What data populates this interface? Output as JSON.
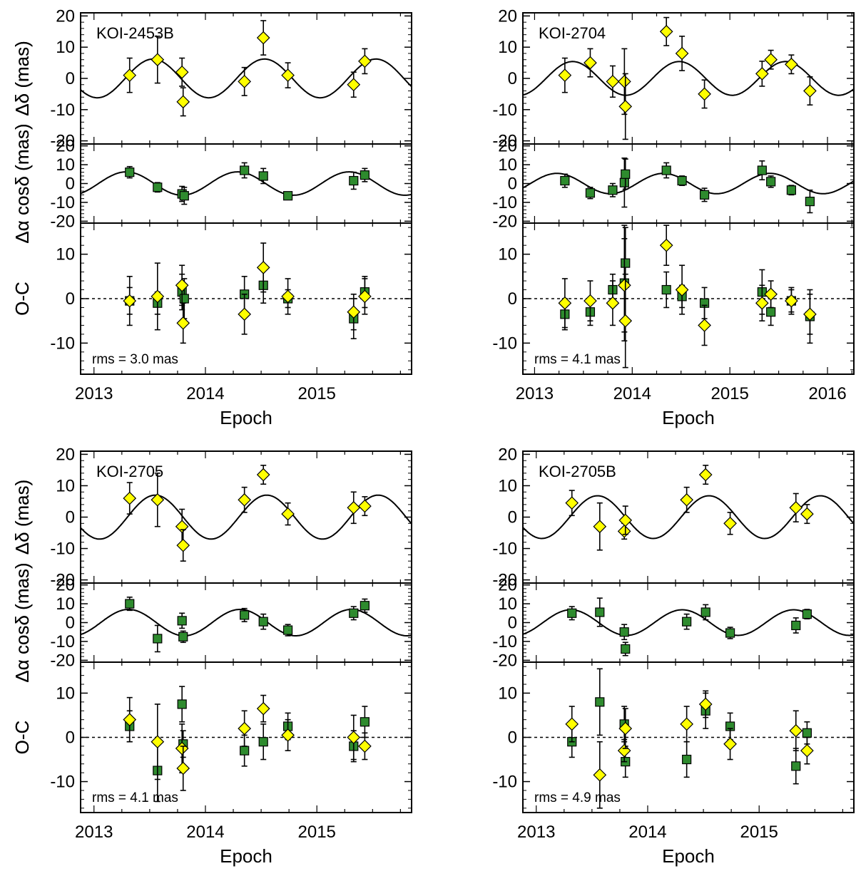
{
  "figure": {
    "xlabel": "Epoch",
    "x_ticks": [
      2013,
      2014,
      2015,
      2016
    ],
    "row_labels": {
      "ddec": "Δδ (mas)",
      "dra": "Δα cosδ (mas)",
      "oc": "O-C"
    },
    "y_ticks_main": [
      -20,
      -10,
      0,
      10,
      20
    ],
    "y_ticks_oc": [
      -10,
      0,
      10
    ],
    "colors": {
      "ddec_marker": "#ffff00",
      "dra_marker": "#2e8b2e",
      "model": "#000000"
    }
  },
  "chart_data": [
    {
      "type": "scatter",
      "name": "KOI-2453B",
      "xlim": [
        2012.88,
        2015.85
      ],
      "ylim_main": [
        -21,
        21
      ],
      "ylim_oc": [
        -17,
        17
      ],
      "model_amp": 6.2,
      "model_period": 1.0,
      "model_peak_ddec": 2014.53,
      "model_peak_dra": 2014.29,
      "rms_text": "rms = 3.0 mas",
      "ddec": {
        "x": [
          2013.32,
          2013.57,
          2013.79,
          2013.8,
          2014.35,
          2014.52,
          2014.74,
          2015.33,
          2015.43
        ],
        "y": [
          1,
          6,
          2,
          -7.5,
          -1,
          13,
          1,
          -2,
          5.5
        ],
        "err": [
          5.5,
          7.5,
          4.5,
          4.5,
          4.5,
          5.5,
          4,
          4,
          4
        ]
      },
      "dra": {
        "x": [
          2013.32,
          2013.57,
          2013.79,
          2013.81,
          2014.35,
          2014.52,
          2014.74,
          2015.33,
          2015.43
        ],
        "y": [
          6,
          -2,
          -5.5,
          -6.5,
          7,
          4,
          -6.5,
          1.5,
          4.5
        ],
        "err": [
          3,
          2.5,
          4,
          4.5,
          4,
          4,
          2,
          4.5,
          3.5
        ]
      },
      "oc_ddec": {
        "x": [
          2013.32,
          2013.57,
          2013.79,
          2013.8,
          2014.35,
          2014.52,
          2014.74,
          2015.33,
          2015.43
        ],
        "y": [
          -0.5,
          0.5,
          3,
          -5.5,
          -3.5,
          7,
          0.5,
          -3,
          0.5
        ],
        "err": [
          5.5,
          7.5,
          4.5,
          4.5,
          4.5,
          5.5,
          4,
          4,
          4
        ]
      },
      "oc_dra": {
        "x": [
          2013.32,
          2013.57,
          2013.79,
          2013.81,
          2014.35,
          2014.52,
          2014.74,
          2015.33,
          2015.43
        ],
        "y": [
          -0.5,
          -1,
          1.5,
          0,
          1,
          3,
          0,
          -4.5,
          1.5
        ],
        "err": [
          3,
          2.5,
          4,
          4.5,
          4,
          4,
          2,
          4.5,
          3.5
        ]
      }
    },
    {
      "type": "scatter",
      "name": "KOI-2704",
      "xlim": [
        2012.88,
        2016.27
      ],
      "ylim_main": [
        -21,
        21
      ],
      "ylim_oc": [
        -17,
        17
      ],
      "model_amp": 5.4,
      "model_period": 1.09,
      "model_peak_ddec": 2014.48,
      "model_peak_dra": 2014.32,
      "rms_text": "rms = 4.1 mas",
      "ddec": {
        "x": [
          2013.31,
          2013.57,
          2013.8,
          2013.92,
          2013.93,
          2014.35,
          2014.51,
          2014.74,
          2015.33,
          2015.42,
          2015.63,
          2015.82
        ],
        "y": [
          1,
          5,
          -1,
          -1,
          -9,
          15,
          8,
          -5,
          1.5,
          6,
          4.5,
          -4
        ],
        "err": [
          5.5,
          4.5,
          5,
          10.5,
          10.5,
          4.5,
          5.5,
          4.5,
          4,
          3,
          3,
          4.5
        ]
      },
      "dra": {
        "x": [
          2013.31,
          2013.57,
          2013.8,
          2013.92,
          2013.93,
          2014.35,
          2014.51,
          2014.74,
          2015.33,
          2015.42,
          2015.63,
          2015.82
        ],
        "y": [
          1.5,
          -5,
          -3.5,
          0.5,
          5,
          7,
          1.5,
          -6,
          7,
          1,
          -3.5,
          -9.5
        ],
        "err": [
          3.5,
          3,
          3.5,
          13,
          8,
          4,
          2.5,
          3.5,
          5,
          3,
          2.5,
          6
        ]
      },
      "oc_ddec": {
        "x": [
          2013.31,
          2013.57,
          2013.8,
          2013.92,
          2013.93,
          2014.35,
          2014.51,
          2014.74,
          2015.33,
          2015.42,
          2015.63,
          2015.82
        ],
        "y": [
          -1,
          -0.5,
          -1,
          3,
          -5,
          12,
          2,
          -6,
          -1,
          1,
          -0.5,
          -3.5
        ],
        "err": [
          5.5,
          4.5,
          5,
          10.5,
          10.5,
          4.5,
          5.5,
          4.5,
          4,
          3,
          3,
          4.5
        ]
      },
      "oc_dra": {
        "x": [
          2013.31,
          2013.57,
          2013.8,
          2013.92,
          2013.93,
          2014.35,
          2014.51,
          2014.74,
          2015.33,
          2015.42,
          2015.63,
          2015.82
        ],
        "y": [
          -3.5,
          -3,
          2,
          3.5,
          8,
          2,
          0.5,
          -1,
          1.5,
          -3,
          -0.5,
          -4
        ],
        "err": [
          3.5,
          3,
          3.5,
          13,
          8,
          4,
          2.5,
          3.5,
          5,
          3,
          2.5,
          6
        ]
      }
    },
    {
      "type": "scatter",
      "name": "KOI-2705",
      "xlim": [
        2012.88,
        2015.85
      ],
      "ylim_main": [
        -21,
        21
      ],
      "ylim_oc": [
        -17,
        17
      ],
      "model_amp": 7.0,
      "model_period": 1.0,
      "model_peak_ddec": 2014.55,
      "model_peak_dra": 2014.31,
      "rms_text": "rms = 4.1 mas",
      "ddec": {
        "x": [
          2013.32,
          2013.57,
          2013.79,
          2013.8,
          2014.35,
          2014.52,
          2014.74,
          2015.33,
          2015.43
        ],
        "y": [
          6,
          5.5,
          -3,
          -9,
          5.5,
          13.5,
          1,
          3,
          3.5
        ],
        "err": [
          5,
          8.5,
          5.5,
          5,
          4,
          3,
          3.5,
          5,
          3
        ]
      },
      "dra": {
        "x": [
          2013.32,
          2013.57,
          2013.79,
          2013.8,
          2014.35,
          2014.52,
          2014.74,
          2015.33,
          2015.43
        ],
        "y": [
          10,
          -8.5,
          1,
          -7.5,
          4,
          0.5,
          -4,
          5,
          9
        ],
        "err": [
          3.5,
          7,
          4,
          3,
          3.5,
          4,
          3,
          3.5,
          3.5
        ]
      },
      "oc_ddec": {
        "x": [
          2013.32,
          2013.57,
          2013.79,
          2013.8,
          2014.35,
          2014.52,
          2014.74,
          2015.33,
          2015.43
        ],
        "y": [
          4,
          -1,
          -2.5,
          -7,
          2,
          6.5,
          0.5,
          0,
          -2
        ],
        "err": [
          5,
          8.5,
          5.5,
          5,
          4,
          3,
          3.5,
          5,
          3
        ]
      },
      "oc_dra": {
        "x": [
          2013.32,
          2013.57,
          2013.79,
          2013.8,
          2014.35,
          2014.52,
          2014.74,
          2015.33,
          2015.43
        ],
        "y": [
          2.5,
          -7.5,
          7.5,
          -1.5,
          -3,
          -1,
          2.5,
          -2,
          3.5
        ],
        "err": [
          3.5,
          7,
          4,
          3,
          3.5,
          4,
          3,
          3.5,
          3.5
        ]
      }
    },
    {
      "type": "scatter",
      "name": "KOI-2705B",
      "xlim": [
        2012.88,
        2015.85
      ],
      "ylim_main": [
        -21,
        21
      ],
      "ylim_oc": [
        -17,
        17
      ],
      "model_amp": 6.8,
      "model_period": 1.0,
      "model_peak_ddec": 2014.55,
      "model_peak_dra": 2014.31,
      "rms_text": "rms = 4.9 mas",
      "ddec": {
        "x": [
          2013.32,
          2013.57,
          2013.79,
          2013.8,
          2014.35,
          2014.52,
          2014.74,
          2015.33,
          2015.43
        ],
        "y": [
          4.5,
          -3,
          -4.5,
          -1,
          5.5,
          13.5,
          -2,
          3,
          1
        ],
        "err": [
          4,
          7.5,
          2.5,
          4.5,
          4,
          3,
          3.5,
          4.5,
          3
        ]
      },
      "dra": {
        "x": [
          2013.32,
          2013.57,
          2013.79,
          2013.8,
          2014.35,
          2014.52,
          2014.74,
          2015.33,
          2015.43
        ],
        "y": [
          5,
          5.5,
          -5,
          -14,
          0.5,
          5.5,
          -5.5,
          -1.5,
          4.5
        ],
        "err": [
          3.5,
          7.5,
          4,
          3.5,
          4,
          4,
          3,
          4,
          2.5
        ]
      },
      "oc_ddec": {
        "x": [
          2013.32,
          2013.57,
          2013.79,
          2013.8,
          2014.35,
          2014.52,
          2014.74,
          2015.33,
          2015.43
        ],
        "y": [
          3,
          -8.5,
          -3,
          2,
          3,
          7.5,
          -1.5,
          1.5,
          -3
        ],
        "err": [
          4,
          7.5,
          2.5,
          4.5,
          4,
          3,
          3.5,
          4.5,
          3
        ]
      },
      "oc_dra": {
        "x": [
          2013.32,
          2013.57,
          2013.79,
          2013.8,
          2014.35,
          2014.52,
          2014.74,
          2015.33,
          2015.43
        ],
        "y": [
          -1,
          8,
          3,
          -5.5,
          -5,
          6,
          2.5,
          -6.5,
          1
        ],
        "err": [
          3.5,
          7.5,
          4,
          3.5,
          4,
          4,
          3,
          4,
          2.5
        ]
      }
    }
  ]
}
